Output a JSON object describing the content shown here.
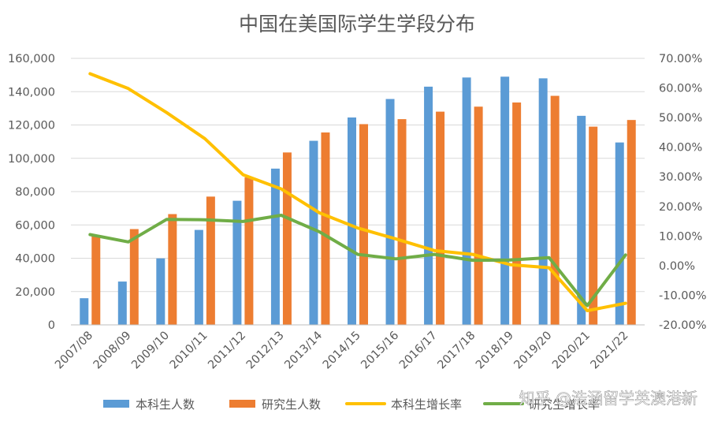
{
  "chart_data": {
    "type": "bar",
    "title": "中国在美国际学生学段分布",
    "categories": [
      "2007/08",
      "2008/09",
      "2009/10",
      "2010/11",
      "2011/12",
      "2012/13",
      "2013/14",
      "2014/15",
      "2015/16",
      "2016/17",
      "2017/18",
      "2018/19",
      "2019/20",
      "2020/21",
      "2021/22"
    ],
    "y_left": {
      "lim": [
        0,
        160000
      ],
      "ticks": [
        0,
        20000,
        40000,
        60000,
        80000,
        100000,
        120000,
        140000,
        160000
      ],
      "tick_labels": [
        "0",
        "20,000",
        "40,000",
        "60,000",
        "80,000",
        "100,000",
        "120,000",
        "140,000",
        "160,000"
      ]
    },
    "y_right": {
      "lim": [
        -20,
        70
      ],
      "ticks": [
        70,
        60,
        50,
        40,
        30,
        20,
        10,
        0,
        -10,
        -20
      ],
      "tick_labels": [
        "70.00%",
        "60.00%",
        "50.00%",
        "40.00%",
        "30.00%",
        "20.00%",
        "10.00%",
        "0.00%",
        "-10.00%",
        "-20.00%"
      ]
    },
    "bar_series": [
      {
        "name": "本科生人数",
        "color": "#5B9BD5",
        "values": [
          16000,
          26000,
          39900,
          57000,
          74500,
          93800,
          110500,
          124500,
          135600,
          143000,
          148500,
          149000,
          148000,
          125500,
          109500
        ]
      },
      {
        "name": "研究生人数",
        "color": "#ED7D31",
        "values": [
          54000,
          57500,
          66500,
          77000,
          88500,
          103500,
          115500,
          120500,
          123500,
          128000,
          131000,
          133500,
          137500,
          119000,
          123000
        ]
      }
    ],
    "line_series": [
      {
        "name": "本科生增长率",
        "color": "#FFC000",
        "axis": "right",
        "values": [
          64.8,
          59.8,
          51.7,
          42.9,
          30.7,
          25.9,
          17.8,
          12.7,
          9.0,
          5.1,
          3.8,
          0.3,
          -0.7,
          -15.2,
          -12.7
        ]
      },
      {
        "name": "研究生增长率",
        "color": "#70AD47",
        "axis": "right",
        "values": [
          10.5,
          8.0,
          15.6,
          15.5,
          14.9,
          17.0,
          11.4,
          3.8,
          2.3,
          3.8,
          1.8,
          1.9,
          2.7,
          -13.5,
          3.6
        ]
      }
    ],
    "legend_position": "bottom",
    "grid": true
  },
  "watermark": "知乎 @浩涵留学英澳港新"
}
